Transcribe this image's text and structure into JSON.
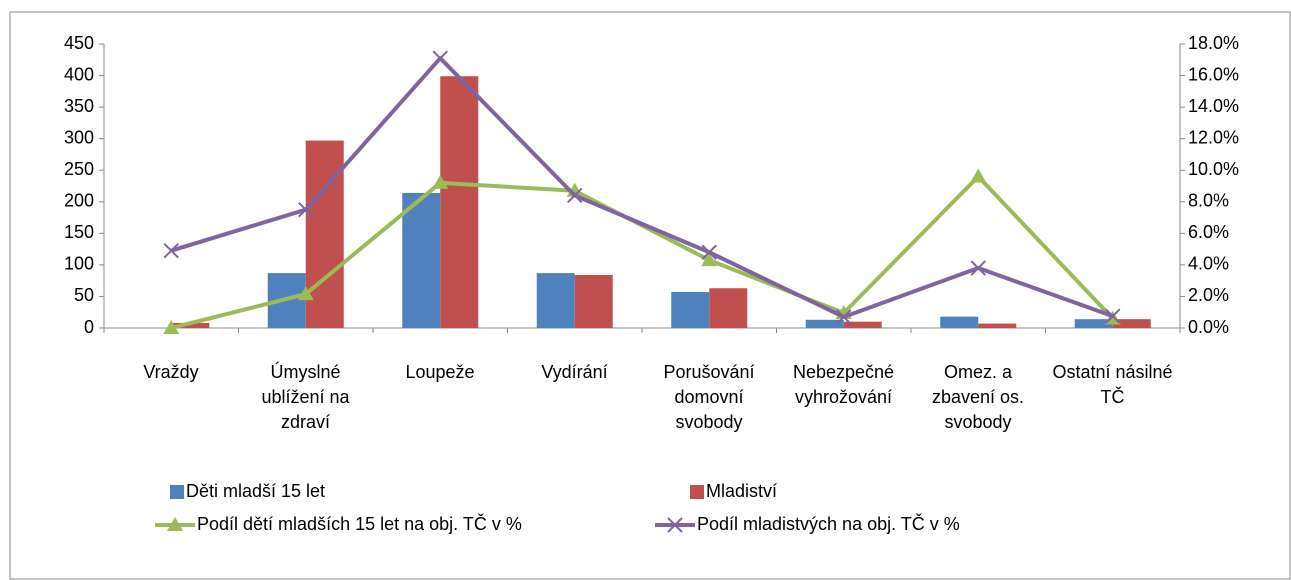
{
  "chart_data": {
    "type": "bar-line",
    "categories": [
      "Vraždy",
      "Úmyslné ublížení na zdraví",
      "Loupeže",
      "Vydírání",
      "Porušování domovní svobody",
      "Nebezpečné vyhrožování",
      "Omez. a zbavení os. svobody",
      "Ostatní násilné TČ"
    ],
    "series": [
      {
        "name": "Děti mladší 15 let",
        "color": "#4f81bd",
        "type": "bar",
        "values": [
          0,
          87,
          214,
          87,
          57,
          13,
          18,
          14
        ]
      },
      {
        "name": "Mladiství",
        "color": "#c0504d",
        "type": "bar",
        "values": [
          8,
          297,
          399,
          84,
          63,
          10,
          7,
          14
        ]
      },
      {
        "name": "Podíl dětí mladších 15 let na obj. TČ v %",
        "color": "#9bbb59",
        "type": "line",
        "marker": "triangle",
        "axis": "y2",
        "values": [
          0,
          2.15,
          9.2,
          8.7,
          4.3,
          0.95,
          9.6,
          0.6
        ]
      },
      {
        "name": "Podíl mladistvých na obj. TČ v %",
        "color": "#8064a2",
        "type": "line",
        "marker": "x",
        "axis": "y2",
        "values": [
          4.9,
          7.5,
          17.1,
          8.4,
          4.8,
          0.7,
          3.8,
          0.75
        ]
      }
    ],
    "ylim": [
      0,
      450
    ],
    "yticks": [
      0,
      50,
      100,
      150,
      200,
      250,
      300,
      350,
      400,
      450
    ],
    "y2lim": [
      0,
      18
    ],
    "y2ticks": [
      {
        "value": 0,
        "label": "0.0%"
      },
      {
        "value": 2,
        "label": "2.0%"
      },
      {
        "value": 4,
        "label": "4.0%"
      },
      {
        "value": 6,
        "label": "6.0%"
      },
      {
        "value": 8,
        "label": "8.0%"
      },
      {
        "value": 10,
        "label": "10.0%"
      },
      {
        "value": 12,
        "label": "12.0%"
      },
      {
        "value": 14,
        "label": "14.0%"
      },
      {
        "value": 16,
        "label": "16.0%"
      },
      {
        "value": 18,
        "label": "18.0%"
      }
    ],
    "grid": false,
    "legend": "bottom"
  }
}
